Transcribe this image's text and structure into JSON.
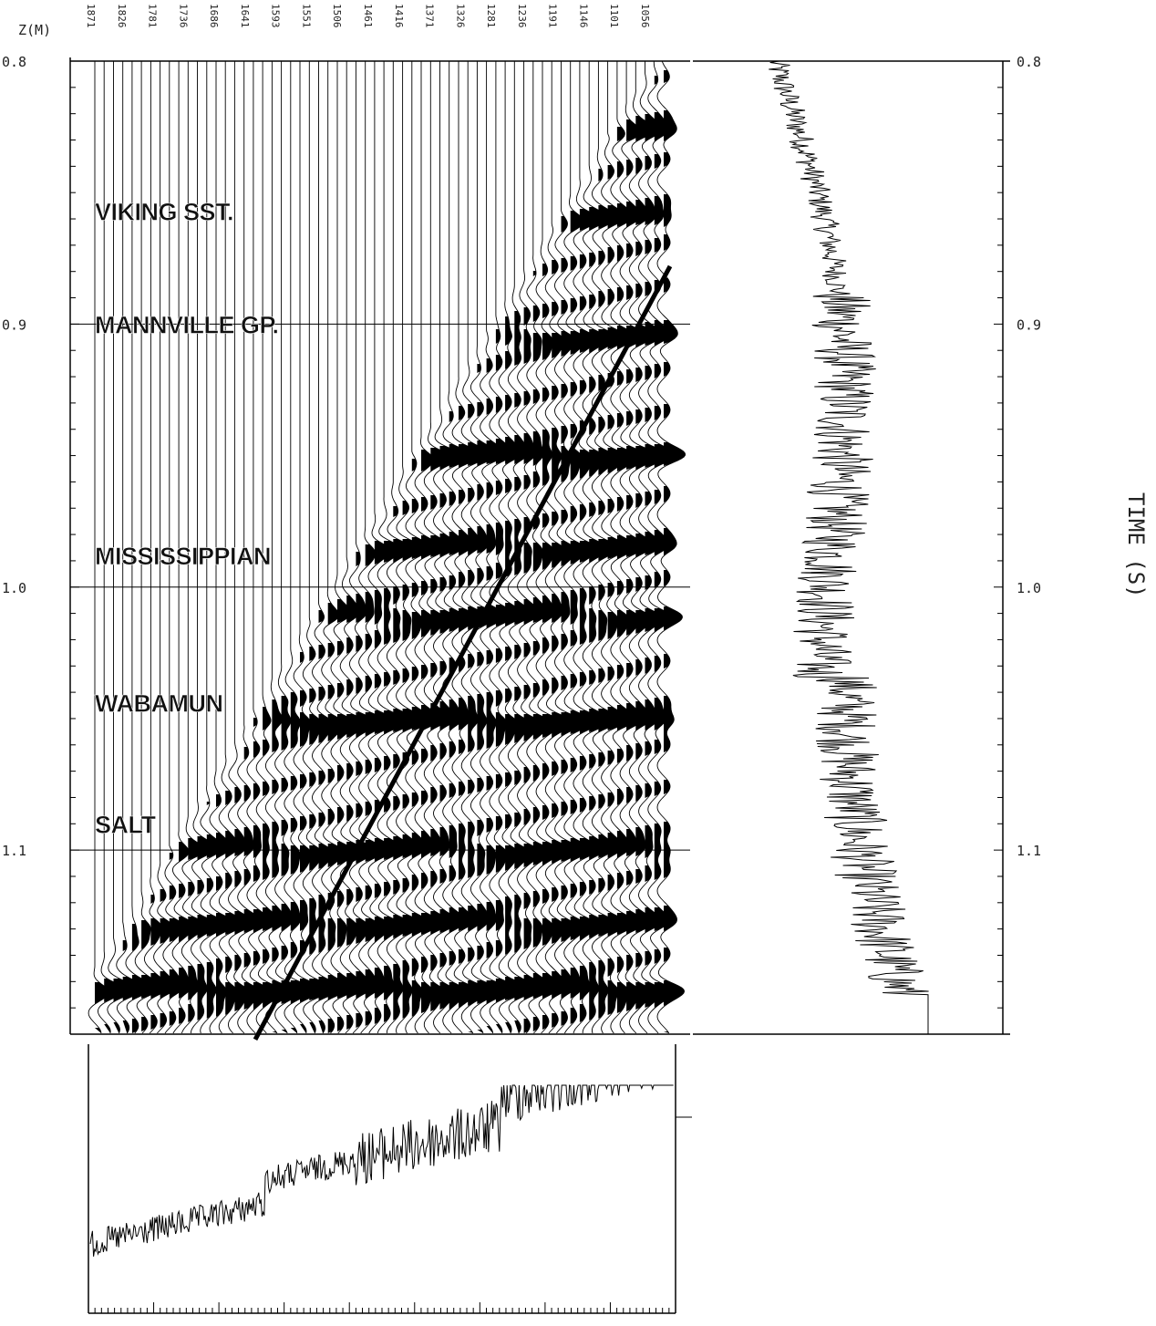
{
  "chart_data": {
    "type": "seismic-wiggle",
    "depth_axis_title": "Z(M)",
    "time_axis_title": "TIME (S)",
    "depth_labels": [
      "1871",
      "1826",
      "1781",
      "1736",
      "1686",
      "1641",
      "1593",
      "1551",
      "1506",
      "1461",
      "1416",
      "1371",
      "1326",
      "1281",
      "1236",
      "1191",
      "1146",
      "1101",
      "1056"
    ],
    "time_ticks": [
      {
        "value": 0.8,
        "label": "0.8"
      },
      {
        "value": 0.9,
        "label": "0.9"
      },
      {
        "value": 1.0,
        "label": "1.0"
      },
      {
        "value": 1.1,
        "label": "1.1"
      }
    ],
    "ylim": [
      0.8,
      1.17
    ],
    "horizons": [
      {
        "name": "VIKING SST.",
        "time": 0.857
      },
      {
        "name": "MANNVILLE GP.",
        "time": 0.9
      },
      {
        "name": "MISSISSIPPIAN",
        "time": 0.988
      },
      {
        "name": "WABAMUN",
        "time": 1.044
      },
      {
        "name": "SALT",
        "time": 1.09
      }
    ],
    "events": [
      0.827,
      0.86,
      0.905,
      0.95,
      0.985,
      1.011,
      1.051,
      1.1,
      1.128,
      1.153
    ],
    "trace_count": 62,
    "first_break": {
      "top_time": 0.878,
      "bottom_time": 1.172
    },
    "sonic_log_time": {
      "start": 0.8,
      "end": 1.155
    },
    "sonic_log_depth": {
      "left_value": 0.5,
      "right_value": 1.0
    }
  }
}
